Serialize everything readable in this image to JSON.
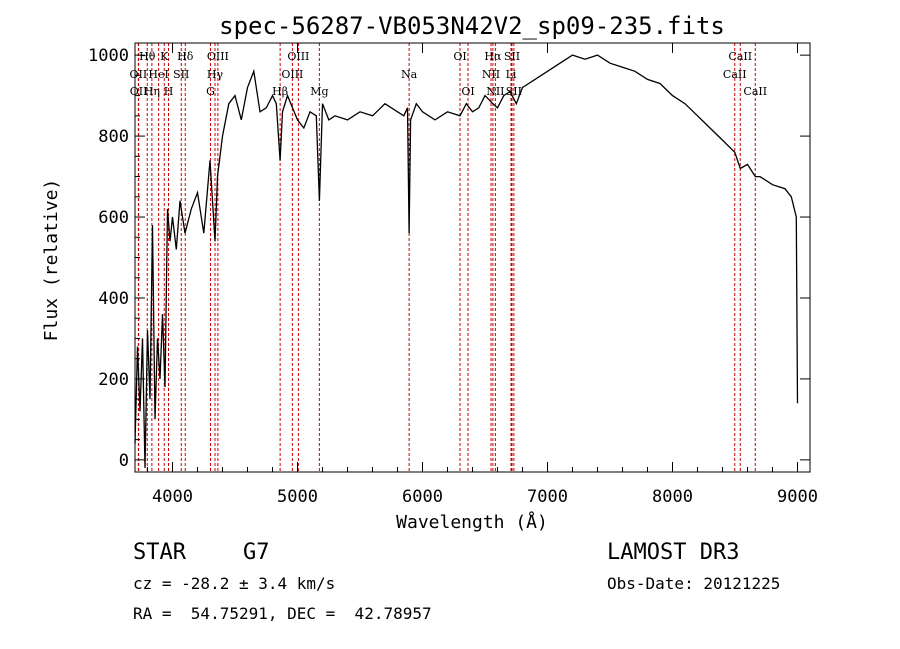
{
  "chart_data": {
    "type": "line",
    "title": "spec-56287-VB053N42V2_sp09-235.fits",
    "xlabel": "Wavelength (Å)",
    "ylabel": "Flux (relative)",
    "xlim": [
      3700,
      9100
    ],
    "ylim": [
      -30,
      1030
    ],
    "xticks": [
      4000,
      5000,
      6000,
      7000,
      8000,
      9000
    ],
    "yticks": [
      0,
      200,
      400,
      600,
      800,
      1000
    ],
    "xtick_labels": [
      "4000",
      "5000",
      "6000",
      "7000",
      "8000",
      "9000"
    ],
    "ytick_labels": [
      "0",
      "200",
      "400",
      "600",
      "800",
      "1000"
    ],
    "series": [
      {
        "name": "spectrum",
        "x": [
          3700,
          3720,
          3740,
          3760,
          3780,
          3800,
          3820,
          3840,
          3860,
          3880,
          3900,
          3920,
          3940,
          3960,
          3980,
          4000,
          4030,
          4060,
          4100,
          4150,
          4200,
          4250,
          4300,
          4340,
          4360,
          4400,
          4450,
          4500,
          4550,
          4600,
          4650,
          4700,
          4750,
          4800,
          4830,
          4861,
          4880,
          4920,
          4960,
          5000,
          5050,
          5100,
          5150,
          5175,
          5200,
          5250,
          5300,
          5400,
          5500,
          5600,
          5700,
          5800,
          5850,
          5880,
          5893,
          5905,
          5950,
          6000,
          6100,
          6200,
          6300,
          6350,
          6400,
          6450,
          6500,
          6563,
          6600,
          6650,
          6700,
          6750,
          6800,
          6900,
          7000,
          7100,
          7200,
          7300,
          7400,
          7500,
          7600,
          7700,
          7800,
          7900,
          8000,
          8100,
          8200,
          8300,
          8400,
          8498,
          8542,
          8600,
          8662,
          8700,
          8800,
          8900,
          8950,
          8990,
          9000
        ],
        "y": [
          40,
          280,
          120,
          300,
          -20,
          320,
          150,
          580,
          100,
          300,
          200,
          360,
          180,
          620,
          540,
          600,
          520,
          640,
          560,
          620,
          660,
          560,
          740,
          540,
          700,
          800,
          880,
          900,
          840,
          920,
          960,
          860,
          870,
          900,
          880,
          740,
          860,
          900,
          870,
          840,
          820,
          860,
          850,
          640,
          880,
          840,
          850,
          840,
          860,
          850,
          880,
          860,
          850,
          870,
          560,
          840,
          880,
          860,
          840,
          860,
          850,
          880,
          860,
          870,
          900,
          880,
          870,
          900,
          910,
          880,
          920,
          940,
          960,
          980,
          1000,
          990,
          1000,
          980,
          970,
          960,
          940,
          930,
          900,
          880,
          850,
          820,
          790,
          760,
          720,
          730,
          700,
          700,
          680,
          670,
          650,
          600,
          140
        ]
      }
    ],
    "line_markers": [
      {
        "label": "Hθ",
        "wavelength": 3798,
        "row": 0
      },
      {
        "label": "OII",
        "wavelength": 3727,
        "row": 1
      },
      {
        "label": "OII",
        "wavelength": 3729,
        "row": 2
      },
      {
        "label": "K",
        "wavelength": 3934,
        "row": 0
      },
      {
        "label": "HeI",
        "wavelength": 3889,
        "row": 1
      },
      {
        "label": "Hη",
        "wavelength": 3835,
        "row": 2
      },
      {
        "label": "Hδ",
        "wavelength": 4102,
        "row": 0
      },
      {
        "label": "SII",
        "wavelength": 4070,
        "row": 1
      },
      {
        "label": "H",
        "wavelength": 3968,
        "row": 2
      },
      {
        "label": "OIII",
        "wavelength": 4363,
        "row": 0
      },
      {
        "label": "Hγ",
        "wavelength": 4340,
        "row": 1
      },
      {
        "label": "G",
        "wavelength": 4304,
        "row": 2
      },
      {
        "label": "OIII",
        "wavelength": 5007,
        "row": 0
      },
      {
        "label": "OIII",
        "wavelength": 4959,
        "row": 1
      },
      {
        "label": "Hβ",
        "wavelength": 4861,
        "row": 2
      },
      {
        "label": "Mg",
        "wavelength": 5175,
        "row": 2
      },
      {
        "label": "Na",
        "wavelength": 5893,
        "row": 1
      },
      {
        "label": "OI",
        "wavelength": 6300,
        "row": 0
      },
      {
        "label": "OI",
        "wavelength": 6364,
        "row": 2
      },
      {
        "label": "Hα",
        "wavelength": 6563,
        "row": 0
      },
      {
        "label": "NII",
        "wavelength": 6548,
        "row": 1
      },
      {
        "label": "NII",
        "wavelength": 6583,
        "row": 2
      },
      {
        "label": "SII",
        "wavelength": 6716,
        "row": 0
      },
      {
        "label": "Li",
        "wavelength": 6708,
        "row": 1
      },
      {
        "label": "SII",
        "wavelength": 6731,
        "row": 2
      },
      {
        "label": "CaII",
        "wavelength": 8542,
        "row": 0
      },
      {
        "label": "CaII",
        "wavelength": 8498,
        "row": 1
      },
      {
        "label": "CaII",
        "wavelength": 8662,
        "row": 2
      }
    ],
    "marker_color": "#cc0000"
  },
  "footer": {
    "object_class": "STAR",
    "subclass": "G7",
    "survey": "LAMOST DR3",
    "cz": "cz = -28.2 ± 3.4 km/s",
    "obs_date": "Obs-Date: 20121225",
    "coords": "RA =  54.75291, DEC =  42.78957"
  }
}
